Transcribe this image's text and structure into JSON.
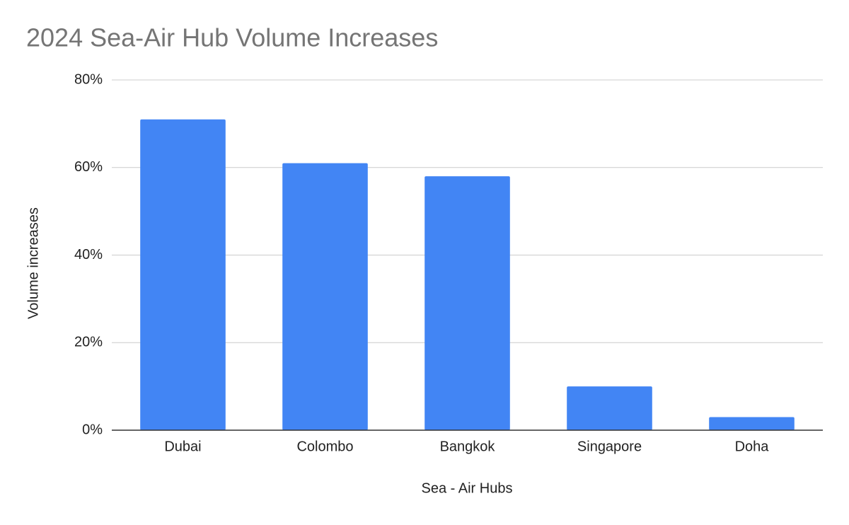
{
  "chart_data": {
    "type": "bar",
    "title": "2024 Sea-Air Hub Volume Increases",
    "x_label": "Sea - Air Hubs",
    "y_label": "Volume increases",
    "categories": [
      "Dubai",
      "Colombo",
      "Bangkok",
      "Singapore",
      "Doha"
    ],
    "values": [
      71,
      61,
      58,
      10,
      3
    ],
    "color": "#4285f4",
    "ylim": [
      0,
      80
    ],
    "yticks": [
      {
        "value": 0,
        "label": "0%"
      },
      {
        "value": 20,
        "label": "20%"
      },
      {
        "value": 40,
        "label": "40%"
      },
      {
        "value": 60,
        "label": "60%"
      },
      {
        "value": 80,
        "label": "80%"
      }
    ],
    "grid": true
  }
}
